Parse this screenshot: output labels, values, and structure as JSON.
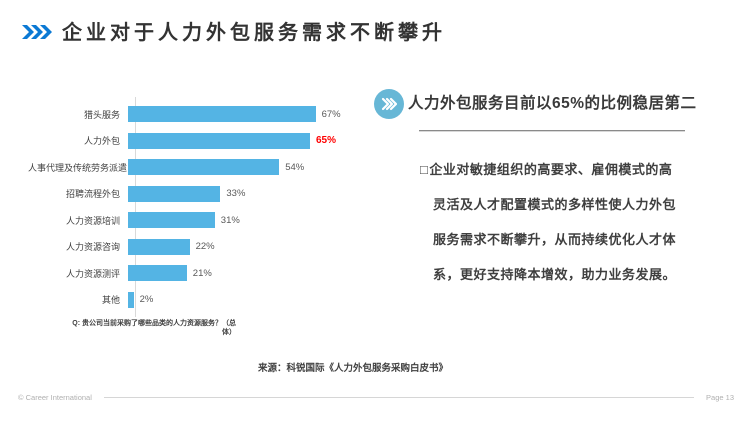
{
  "slide": {
    "title": "企业对于人力外包服务需求不断攀升",
    "source": "来源：科锐国际《人力外包服务采购白皮书》",
    "footer": {
      "copyright": "© Career International",
      "page": "Page 13"
    }
  },
  "chart_data": {
    "type": "bar",
    "orientation": "horizontal",
    "title": "",
    "xlabel": "",
    "ylabel": "",
    "xlim": [
      0,
      72
    ],
    "grid": false,
    "legend": false,
    "categories": [
      "猎头服务",
      "人力外包",
      "人事代理及传统劳务派遣",
      "招聘流程外包",
      "人力资源培训",
      "人力资源咨询",
      "人力资源测评",
      "其他"
    ],
    "values": [
      67,
      65,
      54,
      33,
      31,
      22,
      21,
      2
    ],
    "value_labels": [
      "67%",
      "65%",
      "54%",
      "33%",
      "31%",
      "22%",
      "21%",
      "2%"
    ],
    "highlight_index": 1,
    "highlight_color": "#ff0000",
    "bar_color": "#54b4e4",
    "footnote": "Q: 贵公司当前采购了哪些品类的人力资源服务？（总体）"
  },
  "right_panel": {
    "heading": "人力外包服务目前以65%的比例稳居第二",
    "bullet_char": "□",
    "body": "企业对敏捷组织的高要求、雇佣模式的高灵活及人才配置模式的多样性使人力外包服务需求不断攀升，从而持续优化人才体系，更好支持降本增效，助力业务发展。"
  },
  "colors": {
    "title_text": "#333333",
    "title_chevron_blue": "#0b79d4",
    "bar_blue": "#54b4e4",
    "badge_blue": "#67b7d6",
    "highlight_red": "#ff0000",
    "body_text": "#3f3f3f",
    "divider_gray": "#8a8a8a",
    "footer_gray": "#b0b0b0"
  }
}
